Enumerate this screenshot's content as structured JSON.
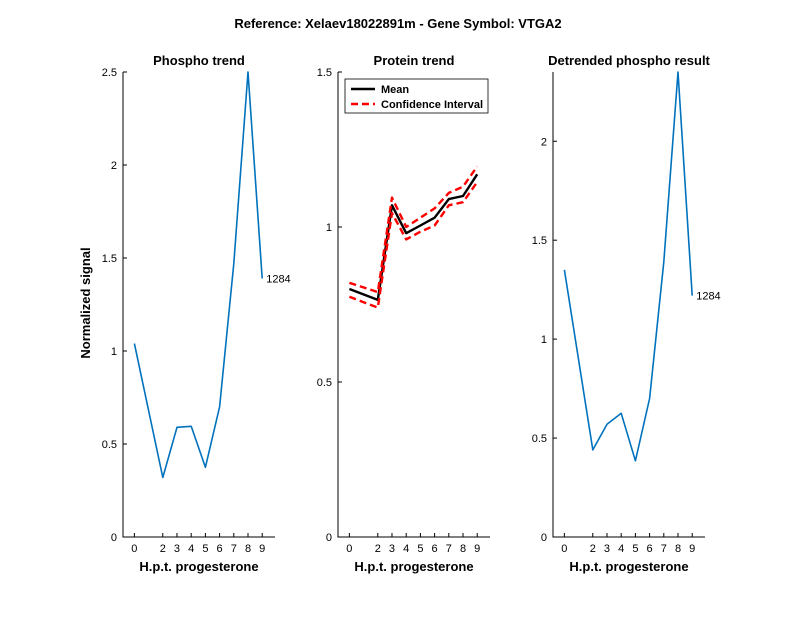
{
  "figure": {
    "suptitle": "Reference:  Xelaev18022891m - Gene Symbol:  VTGA2",
    "ylabel": "Normalized signal"
  },
  "colors": {
    "trace": "#0072BD",
    "mean": "#000000",
    "ci": "#FF0000"
  },
  "chart_data": [
    {
      "type": "line",
      "title": "Phospho trend",
      "xlabel": "H.p.t. progesterone",
      "x": [
        0,
        2,
        3,
        4,
        5,
        6,
        7,
        8,
        9
      ],
      "xticks": [
        "0",
        "2",
        "3",
        "4",
        "5",
        "6",
        "7",
        "8",
        "9"
      ],
      "y": [
        1.04,
        0.32,
        0.59,
        0.595,
        0.375,
        0.7,
        1.47,
        2.5,
        1.39
      ],
      "ylim": [
        0,
        2.5
      ],
      "yticks": [
        0,
        0.5,
        1,
        1.5,
        2,
        2.5
      ],
      "ytick_labels": [
        "0",
        "0.5",
        "1",
        "1.5",
        "2",
        "2.5"
      ],
      "end_label": "1284"
    },
    {
      "type": "line",
      "title": "Protein trend",
      "xlabel": "H.p.t. progesterone",
      "x": [
        0,
        2,
        3,
        4,
        5,
        6,
        7,
        8,
        9
      ],
      "xticks": [
        "0",
        "2",
        "3",
        "4",
        "5",
        "6",
        "7",
        "8",
        "9"
      ],
      "ylim": [
        0,
        1.5
      ],
      "yticks": [
        0,
        0.5,
        1,
        1.5
      ],
      "ytick_labels": [
        "0",
        "0.5",
        "1",
        "1.5"
      ],
      "legend": {
        "location": "top-left",
        "entries": [
          "Mean",
          "Confidence Interval"
        ]
      },
      "series": [
        {
          "name": "Mean",
          "values": [
            0.8,
            0.765,
            1.07,
            0.98,
            1.005,
            1.03,
            1.09,
            1.1,
            1.17
          ]
        },
        {
          "name": "Confidence Interval upper",
          "values": [
            0.82,
            0.79,
            1.095,
            1.0,
            1.03,
            1.06,
            1.11,
            1.13,
            1.195
          ]
        },
        {
          "name": "Confidence Interval lower",
          "values": [
            0.775,
            0.74,
            1.045,
            0.96,
            0.985,
            1.005,
            1.07,
            1.08,
            1.145
          ]
        }
      ]
    },
    {
      "type": "line",
      "title": "Detrended phospho result",
      "xlabel": "H.p.t. progesterone",
      "x": [
        0,
        2,
        3,
        4,
        5,
        6,
        7,
        8,
        9
      ],
      "xticks": [
        "0",
        "2",
        "3",
        "4",
        "5",
        "6",
        "7",
        "8",
        "9"
      ],
      "y": [
        1.35,
        0.44,
        0.57,
        0.625,
        0.385,
        0.7,
        1.39,
        2.35,
        1.22
      ],
      "ylim": [
        0,
        2.35
      ],
      "yticks": [
        0,
        0.5,
        1,
        1.5,
        2
      ],
      "ytick_labels": [
        "0",
        "0.5",
        "1",
        "1.5",
        "2"
      ],
      "end_label": "1284"
    }
  ]
}
